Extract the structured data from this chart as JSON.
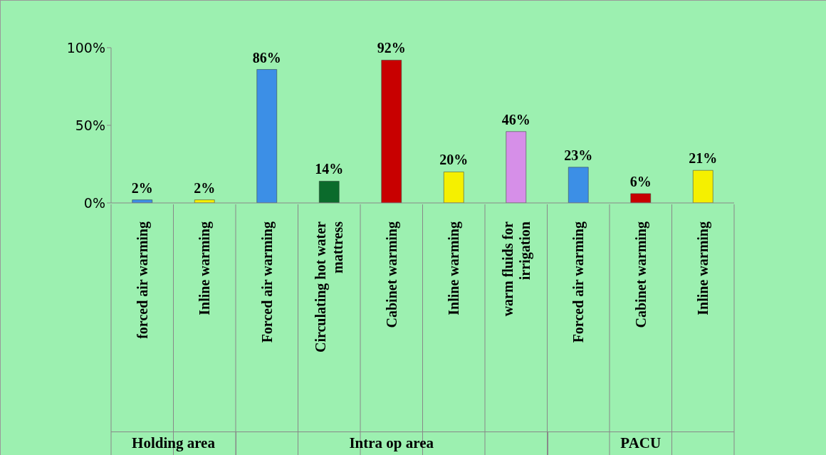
{
  "chart_data": {
    "type": "bar",
    "categories": [
      "forced air warming",
      "Inline warming",
      "Forced air warming",
      "Circulating hot water mattress",
      "Cabinet warming",
      "Inline warming",
      "warm fluids for irrigation",
      "Forced air warming",
      "Cabinet warming",
      "Inline warming"
    ],
    "values": [
      2,
      2,
      86,
      14,
      92,
      20,
      46,
      23,
      6,
      21
    ],
    "colors": [
      "#3c8fe6",
      "#f5f000",
      "#3c8fe6",
      "#0b6b2c",
      "#c80000",
      "#f5f000",
      "#d68fe8",
      "#3c8fe6",
      "#c80000",
      "#f5f000"
    ],
    "value_labels": [
      "2%",
      "2%",
      "86%",
      "14%",
      "92%",
      "20%",
      "46%",
      "23%",
      "6%",
      "21%"
    ],
    "ylim": [
      0,
      100
    ],
    "yticks": [
      {
        "value": 0,
        "label": "0%"
      },
      {
        "value": 50,
        "label": "50%"
      },
      {
        "value": 100,
        "label": "100%"
      }
    ],
    "annotations": [
      "Holding area",
      "Intra op area",
      "PACU"
    ]
  }
}
